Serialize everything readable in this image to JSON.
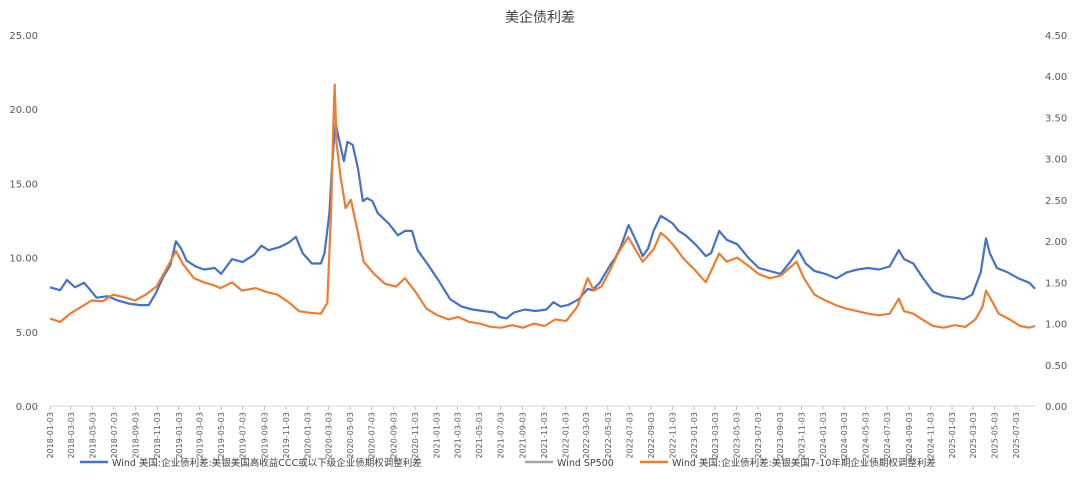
{
  "chart_data": {
    "type": "line",
    "title": "美企债利差",
    "xlabel": "",
    "ylabel": "",
    "y_left": {
      "min": 0,
      "max": 25,
      "ticks": [
        "0.00",
        "5.00",
        "10.00",
        "15.00",
        "20.00",
        "25.00"
      ]
    },
    "y_right": {
      "min": 0,
      "max": 4.5,
      "ticks": [
        "0.00",
        "0.50",
        "1.00",
        "1.50",
        "2.00",
        "2.50",
        "3.00",
        "3.50",
        "4.00",
        "4.50"
      ]
    },
    "x_range": [
      "2018-01-03",
      "2025-08-26"
    ],
    "x_ticks": [
      "2018-01-03",
      "2018-03-03",
      "2018-05-03",
      "2018-07-03",
      "2018-09-03",
      "2018-11-03",
      "2019-01-03",
      "2019-03-03",
      "2019-05-03",
      "2019-07-03",
      "2019-09-03",
      "2019-11-03",
      "2020-01-03",
      "2020-03-03",
      "2020-05-03",
      "2020-07-03",
      "2020-09-03",
      "2020-11-03",
      "2021-01-03",
      "2021-03-03",
      "2021-05-03",
      "2021-07-03",
      "2021-09-03",
      "2021-11-03",
      "2022-01-03",
      "2022-03-03",
      "2022-05-03",
      "2022-07-03",
      "2022-09-03",
      "2022-11-03",
      "2023-01-03",
      "2023-03-03",
      "2023-05-03",
      "2023-07-03",
      "2023-09-03",
      "2023-11-03",
      "2024-01-03",
      "2024-03-03",
      "2024-05-03",
      "2024-07-03",
      "2024-09-03",
      "2024-11-03",
      "2025-01-03",
      "2025-03-03",
      "2025-05-03",
      "2025-07-03"
    ],
    "grid": false,
    "legend_position": "bottom",
    "series": [
      {
        "name": "Wind 美国:企业债利差:美银美国高收益CCC或以下级企业债期权调整利差",
        "axis": "left",
        "color": "#4472C4",
        "points": [
          [
            "2018-01-03",
            8.0
          ],
          [
            "2018-02-01",
            7.8
          ],
          [
            "2018-02-20",
            8.5
          ],
          [
            "2018-03-15",
            8.0
          ],
          [
            "2018-04-10",
            8.3
          ],
          [
            "2018-05-15",
            7.3
          ],
          [
            "2018-06-15",
            7.4
          ],
          [
            "2018-07-15",
            7.1
          ],
          [
            "2018-08-15",
            6.9
          ],
          [
            "2018-09-15",
            6.8
          ],
          [
            "2018-10-10",
            6.8
          ],
          [
            "2018-10-30",
            7.6
          ],
          [
            "2018-11-20",
            8.7
          ],
          [
            "2018-12-10",
            9.5
          ],
          [
            "2018-12-26",
            11.1
          ],
          [
            "2019-01-10",
            10.6
          ],
          [
            "2019-01-25",
            9.8
          ],
          [
            "2019-02-20",
            9.4
          ],
          [
            "2019-03-15",
            9.2
          ],
          [
            "2019-04-15",
            9.3
          ],
          [
            "2019-05-03",
            8.9
          ],
          [
            "2019-06-03",
            9.9
          ],
          [
            "2019-07-03",
            9.7
          ],
          [
            "2019-08-05",
            10.2
          ],
          [
            "2019-08-25",
            10.8
          ],
          [
            "2019-09-15",
            10.5
          ],
          [
            "2019-10-15",
            10.7
          ],
          [
            "2019-11-10",
            11.0
          ],
          [
            "2019-12-01",
            11.4
          ],
          [
            "2019-12-20",
            10.3
          ],
          [
            "2020-01-15",
            9.6
          ],
          [
            "2020-02-10",
            9.6
          ],
          [
            "2020-02-20",
            10.3
          ],
          [
            "2020-03-05",
            13.0
          ],
          [
            "2020-03-12",
            16.0
          ],
          [
            "2020-03-20",
            18.5
          ],
          [
            "2020-03-23",
            19.0
          ],
          [
            "2020-04-01",
            18.0
          ],
          [
            "2020-04-15",
            16.5
          ],
          [
            "2020-04-25",
            17.8
          ],
          [
            "2020-05-10",
            17.6
          ],
          [
            "2020-05-25",
            16.0
          ],
          [
            "2020-06-08",
            13.8
          ],
          [
            "2020-06-20",
            14.0
          ],
          [
            "2020-07-05",
            13.8
          ],
          [
            "2020-07-20",
            13.0
          ],
          [
            "2020-08-20",
            12.3
          ],
          [
            "2020-09-15",
            11.5
          ],
          [
            "2020-10-05",
            11.8
          ],
          [
            "2020-10-25",
            11.8
          ],
          [
            "2020-11-10",
            10.5
          ],
          [
            "2020-12-10",
            9.5
          ],
          [
            "2021-01-10",
            8.4
          ],
          [
            "2021-02-10",
            7.2
          ],
          [
            "2021-03-15",
            6.7
          ],
          [
            "2021-04-15",
            6.5
          ],
          [
            "2021-05-15",
            6.4
          ],
          [
            "2021-06-15",
            6.3
          ],
          [
            "2021-07-01",
            6.0
          ],
          [
            "2021-07-20",
            5.9
          ],
          [
            "2021-08-10",
            6.3
          ],
          [
            "2021-09-10",
            6.5
          ],
          [
            "2021-10-10",
            6.4
          ],
          [
            "2021-11-10",
            6.5
          ],
          [
            "2021-11-30",
            7.0
          ],
          [
            "2021-12-20",
            6.7
          ],
          [
            "2022-01-10",
            6.8
          ],
          [
            "2022-02-10",
            7.2
          ],
          [
            "2022-03-07",
            7.9
          ],
          [
            "2022-03-20",
            7.8
          ],
          [
            "2022-04-10",
            8.3
          ],
          [
            "2022-05-10",
            9.5
          ],
          [
            "2022-05-25",
            10.0
          ],
          [
            "2022-06-10",
            10.8
          ],
          [
            "2022-07-01",
            12.2
          ],
          [
            "2022-07-25",
            11.0
          ],
          [
            "2022-08-10",
            10.1
          ],
          [
            "2022-08-25",
            10.6
          ],
          [
            "2022-09-10",
            11.8
          ],
          [
            "2022-09-30",
            12.8
          ],
          [
            "2022-10-15",
            12.6
          ],
          [
            "2022-11-03",
            12.3
          ],
          [
            "2022-11-20",
            11.8
          ],
          [
            "2022-12-10",
            11.5
          ],
          [
            "2023-01-10",
            10.8
          ],
          [
            "2023-02-05",
            10.1
          ],
          [
            "2023-02-20",
            10.3
          ],
          [
            "2023-03-15",
            11.8
          ],
          [
            "2023-04-05",
            11.2
          ],
          [
            "2023-05-05",
            10.9
          ],
          [
            "2023-06-05",
            10.0
          ],
          [
            "2023-07-05",
            9.3
          ],
          [
            "2023-08-05",
            9.1
          ],
          [
            "2023-09-05",
            8.9
          ],
          [
            "2023-10-05",
            9.8
          ],
          [
            "2023-10-25",
            10.5
          ],
          [
            "2023-11-15",
            9.6
          ],
          [
            "2023-12-10",
            9.1
          ],
          [
            "2024-01-10",
            8.9
          ],
          [
            "2024-02-10",
            8.6
          ],
          [
            "2024-03-10",
            9.0
          ],
          [
            "2024-04-10",
            9.2
          ],
          [
            "2024-05-10",
            9.3
          ],
          [
            "2024-06-10",
            9.2
          ],
          [
            "2024-07-10",
            9.4
          ],
          [
            "2024-08-05",
            10.5
          ],
          [
            "2024-08-20",
            9.9
          ],
          [
            "2024-09-15",
            9.6
          ],
          [
            "2024-10-10",
            8.7
          ],
          [
            "2024-11-10",
            7.7
          ],
          [
            "2024-12-10",
            7.4
          ],
          [
            "2025-01-10",
            7.3
          ],
          [
            "2025-02-05",
            7.2
          ],
          [
            "2025-03-01",
            7.5
          ],
          [
            "2025-03-25",
            9.0
          ],
          [
            "2025-04-09",
            11.3
          ],
          [
            "2025-04-20",
            10.3
          ],
          [
            "2025-05-10",
            9.3
          ],
          [
            "2025-06-10",
            9.0
          ],
          [
            "2025-07-10",
            8.6
          ],
          [
            "2025-08-10",
            8.3
          ],
          [
            "2025-08-26",
            7.9
          ]
        ]
      },
      {
        "name": "Wind SP500",
        "axis": "right",
        "color": "#A5A5A5",
        "points": []
      },
      {
        "name": "Wind 美国:企业债利差:美银美国7-10年期企业债期权调整利差",
        "axis": "right",
        "color": "#ED7D31",
        "points": [
          [
            "2018-01-03",
            1.06
          ],
          [
            "2018-02-01",
            1.02
          ],
          [
            "2018-03-01",
            1.12
          ],
          [
            "2018-04-01",
            1.2
          ],
          [
            "2018-05-01",
            1.28
          ],
          [
            "2018-06-01",
            1.27
          ],
          [
            "2018-07-01",
            1.35
          ],
          [
            "2018-08-01",
            1.32
          ],
          [
            "2018-09-01",
            1.28
          ],
          [
            "2018-10-01",
            1.35
          ],
          [
            "2018-11-01",
            1.45
          ],
          [
            "2018-12-01",
            1.68
          ],
          [
            "2018-12-26",
            1.88
          ],
          [
            "2019-01-15",
            1.72
          ],
          [
            "2019-02-15",
            1.55
          ],
          [
            "2019-03-15",
            1.5
          ],
          [
            "2019-04-15",
            1.46
          ],
          [
            "2019-05-01",
            1.43
          ],
          [
            "2019-06-03",
            1.5
          ],
          [
            "2019-07-01",
            1.4
          ],
          [
            "2019-08-10",
            1.43
          ],
          [
            "2019-09-10",
            1.38
          ],
          [
            "2019-10-10",
            1.35
          ],
          [
            "2019-11-10",
            1.26
          ],
          [
            "2019-12-10",
            1.15
          ],
          [
            "2020-01-10",
            1.13
          ],
          [
            "2020-02-10",
            1.12
          ],
          [
            "2020-02-28",
            1.25
          ],
          [
            "2020-03-10",
            2.4
          ],
          [
            "2020-03-16",
            3.4
          ],
          [
            "2020-03-20",
            3.9
          ],
          [
            "2020-03-25",
            3.2
          ],
          [
            "2020-04-05",
            2.8
          ],
          [
            "2020-04-20",
            2.4
          ],
          [
            "2020-05-05",
            2.5
          ],
          [
            "2020-05-25",
            2.1
          ],
          [
            "2020-06-10",
            1.75
          ],
          [
            "2020-07-10",
            1.6
          ],
          [
            "2020-08-10",
            1.48
          ],
          [
            "2020-09-10",
            1.45
          ],
          [
            "2020-10-05",
            1.55
          ],
          [
            "2020-11-05",
            1.38
          ],
          [
            "2020-12-05",
            1.18
          ],
          [
            "2021-01-05",
            1.1
          ],
          [
            "2021-02-05",
            1.05
          ],
          [
            "2021-03-05",
            1.08
          ],
          [
            "2021-04-05",
            1.02
          ],
          [
            "2021-05-05",
            1.0
          ],
          [
            "2021-06-05",
            0.96
          ],
          [
            "2021-07-05",
            0.95
          ],
          [
            "2021-08-05",
            0.98
          ],
          [
            "2021-09-05",
            0.95
          ],
          [
            "2021-10-05",
            1.0
          ],
          [
            "2021-11-05",
            0.97
          ],
          [
            "2021-12-05",
            1.05
          ],
          [
            "2022-01-05",
            1.03
          ],
          [
            "2022-02-05",
            1.2
          ],
          [
            "2022-03-07",
            1.55
          ],
          [
            "2022-03-25",
            1.4
          ],
          [
            "2022-04-15",
            1.45
          ],
          [
            "2022-05-10",
            1.65
          ],
          [
            "2022-06-01",
            1.85
          ],
          [
            "2022-06-30",
            2.05
          ],
          [
            "2022-07-20",
            1.9
          ],
          [
            "2022-08-10",
            1.75
          ],
          [
            "2022-09-10",
            1.9
          ],
          [
            "2022-09-30",
            2.1
          ],
          [
            "2022-10-15",
            2.05
          ],
          [
            "2022-11-05",
            1.95
          ],
          [
            "2022-12-05",
            1.78
          ],
          [
            "2023-01-05",
            1.65
          ],
          [
            "2023-02-05",
            1.5
          ],
          [
            "2023-03-15",
            1.85
          ],
          [
            "2023-04-05",
            1.75
          ],
          [
            "2023-05-05",
            1.8
          ],
          [
            "2023-06-05",
            1.7
          ],
          [
            "2023-07-05",
            1.6
          ],
          [
            "2023-08-05",
            1.55
          ],
          [
            "2023-09-05",
            1.58
          ],
          [
            "2023-10-20",
            1.75
          ],
          [
            "2023-11-10",
            1.55
          ],
          [
            "2023-12-10",
            1.35
          ],
          [
            "2024-01-10",
            1.28
          ],
          [
            "2024-02-10",
            1.22
          ],
          [
            "2024-03-10",
            1.18
          ],
          [
            "2024-04-10",
            1.15
          ],
          [
            "2024-05-10",
            1.12
          ],
          [
            "2024-06-10",
            1.1
          ],
          [
            "2024-07-10",
            1.12
          ],
          [
            "2024-08-05",
            1.3
          ],
          [
            "2024-08-20",
            1.15
          ],
          [
            "2024-09-15",
            1.12
          ],
          [
            "2024-10-10",
            1.05
          ],
          [
            "2024-11-10",
            0.97
          ],
          [
            "2024-12-10",
            0.95
          ],
          [
            "2025-01-10",
            0.98
          ],
          [
            "2025-02-10",
            0.96
          ],
          [
            "2025-03-10",
            1.05
          ],
          [
            "2025-03-30",
            1.2
          ],
          [
            "2025-04-09",
            1.4
          ],
          [
            "2025-04-25",
            1.28
          ],
          [
            "2025-05-15",
            1.12
          ],
          [
            "2025-06-15",
            1.05
          ],
          [
            "2025-07-15",
            0.97
          ],
          [
            "2025-08-10",
            0.95
          ],
          [
            "2025-08-26",
            0.97
          ]
        ]
      }
    ]
  }
}
